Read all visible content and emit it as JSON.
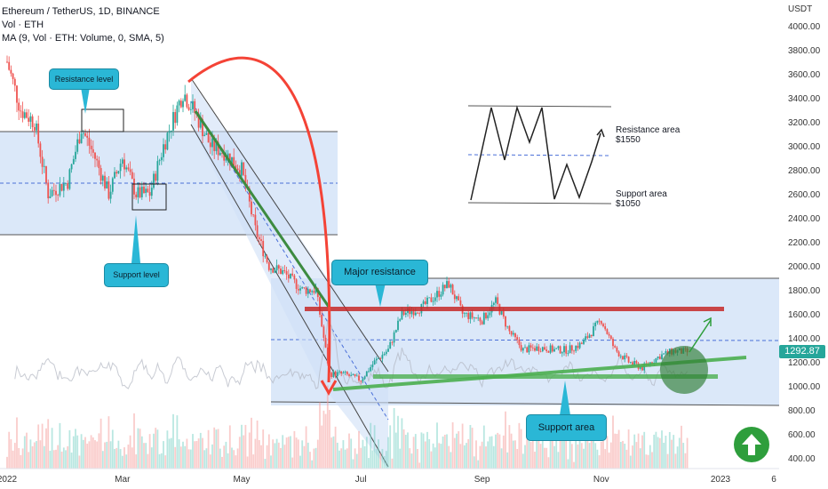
{
  "legend": {
    "line1": "Ethereum / TetherUS, 1D, BINANCE",
    "line2": "Vol · ETH",
    "line3": "MA (9, Vol · ETH: Volume, 0, SMA, 5)"
  },
  "axis": {
    "unit": "USDT",
    "y_ticks": [
      400,
      600,
      800,
      1000,
      1200,
      1400,
      1600,
      1800,
      2000,
      2200,
      2400,
      2600,
      2800,
      3000,
      3200,
      3400,
      3600,
      3800,
      4000
    ],
    "x_ticks": [
      "2022",
      "Mar",
      "May",
      "Jul",
      "Sep",
      "Nov",
      "2023",
      "6"
    ]
  },
  "current_price": "1292.87",
  "annotations": {
    "resistance_level": "Resistance level",
    "support_level": "Support level",
    "major_resistance": "Major resistance",
    "support_area": "Support area",
    "schematic_resistance_title": "Resistance area",
    "schematic_resistance_value": "$1550",
    "schematic_support_title": "Support area",
    "schematic_support_value": "$1050"
  },
  "colors": {
    "up": "#26a69a",
    "down": "#ef5350",
    "callout": "#2ab7d6",
    "zone": "#cfe0f7",
    "green_line": "#4caf50",
    "red_line": "#c62828"
  },
  "chart_data": {
    "type": "candlestick",
    "title": "Ethereum / TetherUS, 1D, BINANCE",
    "ylabel": "USDT",
    "ylim": [
      350,
      4100
    ],
    "x_ticks": [
      "2022",
      "Mar",
      "May",
      "Jul",
      "Sep",
      "Nov",
      "2023",
      "6"
    ],
    "price_path": [
      [
        "2022-01-01",
        3700
      ],
      [
        "2022-01-08",
        3300
      ],
      [
        "2022-01-15",
        3200
      ],
      [
        "2022-01-22",
        2600
      ],
      [
        "2022-02-01",
        2700
      ],
      [
        "2022-02-08",
        3150
      ],
      [
        "2022-02-15",
        2900
      ],
      [
        "2022-02-22",
        2600
      ],
      [
        "2022-03-01",
        2900
      ],
      [
        "2022-03-08",
        2600
      ],
      [
        "2022-03-15",
        2600
      ],
      [
        "2022-03-22",
        3000
      ],
      [
        "2022-04-01",
        3450
      ],
      [
        "2022-04-08",
        3250
      ],
      [
        "2022-04-15",
        3000
      ],
      [
        "2022-04-22",
        2950
      ],
      [
        "2022-05-01",
        2800
      ],
      [
        "2022-05-08",
        2300
      ],
      [
        "2022-05-15",
        2000
      ],
      [
        "2022-05-22",
        1950
      ],
      [
        "2022-06-01",
        1800
      ],
      [
        "2022-06-08",
        1800
      ],
      [
        "2022-06-15",
        1100
      ],
      [
        "2022-06-22",
        1100
      ],
      [
        "2022-07-01",
        1050
      ],
      [
        "2022-07-08",
        1200
      ],
      [
        "2022-07-15",
        1300
      ],
      [
        "2022-07-22",
        1600
      ],
      [
        "2022-08-01",
        1650
      ],
      [
        "2022-08-08",
        1750
      ],
      [
        "2022-08-15",
        1850
      ],
      [
        "2022-08-22",
        1600
      ],
      [
        "2022-09-01",
        1550
      ],
      [
        "2022-09-08",
        1700
      ],
      [
        "2022-09-15",
        1450
      ],
      [
        "2022-09-22",
        1300
      ],
      [
        "2022-10-01",
        1320
      ],
      [
        "2022-10-08",
        1300
      ],
      [
        "2022-10-15",
        1300
      ],
      [
        "2022-10-22",
        1350
      ],
      [
        "2022-11-01",
        1550
      ],
      [
        "2022-11-08",
        1300
      ],
      [
        "2022-11-15",
        1200
      ],
      [
        "2022-11-22",
        1150
      ],
      [
        "2022-12-01",
        1250
      ],
      [
        "2022-12-08",
        1290
      ],
      [
        "2022-12-15",
        1280
      ]
    ],
    "levels": {
      "resistance_area": 1550,
      "support_area": 1050
    }
  }
}
